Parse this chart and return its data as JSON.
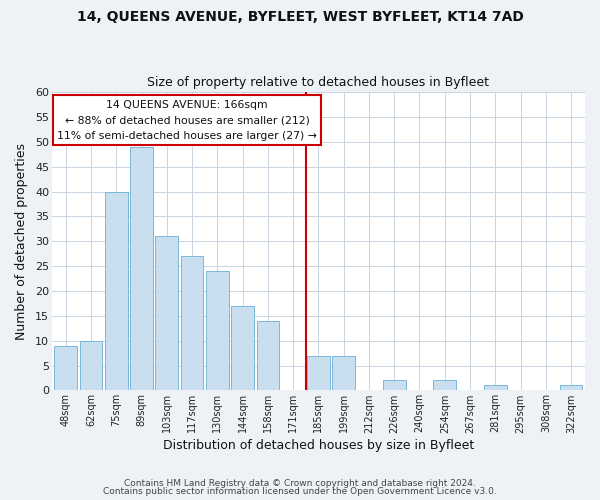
{
  "title": "14, QUEENS AVENUE, BYFLEET, WEST BYFLEET, KT14 7AD",
  "subtitle": "Size of property relative to detached houses in Byfleet",
  "xlabel": "Distribution of detached houses by size in Byfleet",
  "ylabel": "Number of detached properties",
  "bar_labels": [
    "48sqm",
    "62sqm",
    "75sqm",
    "89sqm",
    "103sqm",
    "117sqm",
    "130sqm",
    "144sqm",
    "158sqm",
    "171sqm",
    "185sqm",
    "199sqm",
    "212sqm",
    "226sqm",
    "240sqm",
    "254sqm",
    "267sqm",
    "281sqm",
    "295sqm",
    "308sqm",
    "322sqm"
  ],
  "bar_values": [
    9,
    10,
    40,
    49,
    31,
    27,
    24,
    17,
    14,
    0,
    7,
    7,
    0,
    2,
    0,
    2,
    0,
    1,
    0,
    0,
    1
  ],
  "bar_color": "#c9dff0",
  "bar_edge_color": "#7ab8d9",
  "vline_x_index": 9,
  "vline_color": "#cc0000",
  "ylim": [
    0,
    60
  ],
  "yticks": [
    0,
    5,
    10,
    15,
    20,
    25,
    30,
    35,
    40,
    45,
    50,
    55,
    60
  ],
  "annotation_title": "14 QUEENS AVENUE: 166sqm",
  "annotation_line1": "← 88% of detached houses are smaller (212)",
  "annotation_line2": "11% of semi-detached houses are larger (27) →",
  "annotation_box_color": "#ffffff",
  "annotation_box_edge": "#cc0000",
  "footer1": "Contains HM Land Registry data © Crown copyright and database right 2024.",
  "footer2": "Contains public sector information licensed under the Open Government Licence v3.0.",
  "background_color": "#eef2f7",
  "plot_background_color": "#ffffff",
  "grid_color": "#c8d4e0"
}
